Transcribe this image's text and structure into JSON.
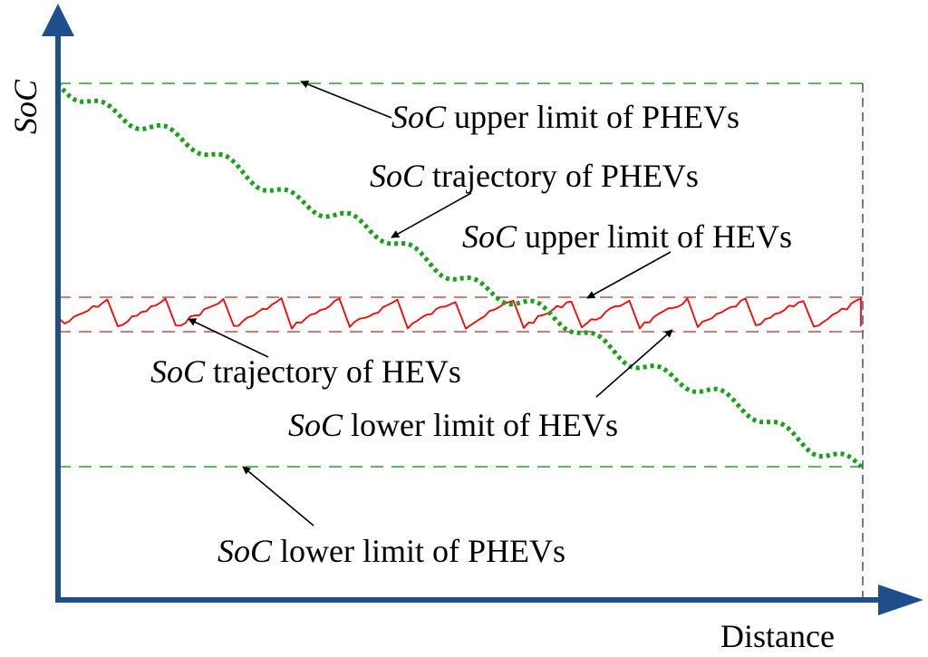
{
  "axes": {
    "y_label": "SoC",
    "x_label": "Distance",
    "axis_color": "#1f4e8c"
  },
  "colors": {
    "phev_trajectory": "#1aa01a",
    "phev_limits": "#2f9e2f",
    "hev_trajectory": "#ff0000",
    "hev_limits": "#c0504d",
    "arrows": "#000000"
  },
  "labels": {
    "phev_upper": {
      "italic": "SoC",
      "rest": " upper limit of PHEVs"
    },
    "phev_traj": {
      "italic": "SoC",
      "rest": " trajectory of PHEVs"
    },
    "hev_upper": {
      "italic": "SoC",
      "rest": " upper limit of HEVs"
    },
    "hev_traj": {
      "italic": "SoC",
      "rest": " trajectory of HEVs"
    },
    "hev_lower": {
      "italic": "SoC",
      "rest": " lower limit of HEVs"
    },
    "phev_lower": {
      "italic": "SoC",
      "rest": " lower limit of PHEVs"
    }
  }
}
